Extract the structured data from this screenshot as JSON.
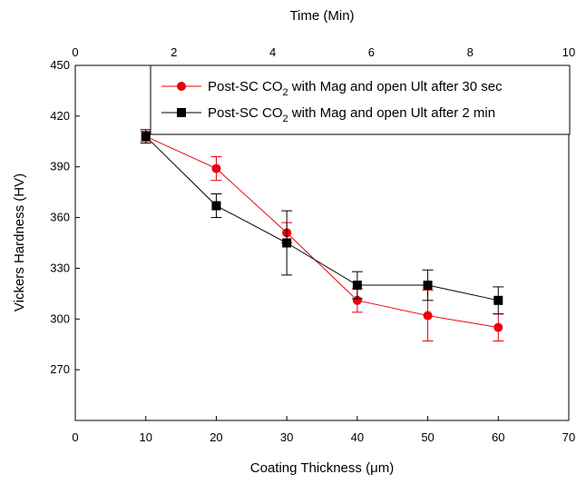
{
  "chart_data": {
    "type": "line",
    "xlabel": "Coating Thickness (μm)",
    "ylabel": "Vickers Hardness (HV)",
    "x2label": "Time (Min)",
    "xlim": [
      0,
      70
    ],
    "ylim": [
      240,
      450
    ],
    "x2lim": [
      0,
      10
    ],
    "xticks": [
      0,
      10,
      20,
      30,
      40,
      50,
      60,
      70
    ],
    "yticks": [
      270,
      300,
      330,
      360,
      390,
      420,
      450
    ],
    "x2ticks": [
      0,
      2,
      4,
      6,
      8,
      10
    ],
    "grid": false,
    "legend_position": "top-right",
    "series": [
      {
        "name": "Post-SC CO2 with Mag and open Ult after 30 sec",
        "name_main": "Post-SC CO",
        "name_sub": "2",
        "name_rest": " with Mag and open Ult after 30 sec",
        "color": "#e8000b",
        "marker": "circle",
        "x": [
          10,
          20,
          30,
          40,
          50,
          60
        ],
        "y": [
          408,
          389,
          351,
          311,
          302,
          295
        ],
        "err": [
          3,
          7,
          6,
          7,
          15,
          8
        ]
      },
      {
        "name": "Post-SC CO2 with Mag and open Ult after 2 min",
        "name_main": "Post-SC CO",
        "name_sub": "2",
        "name_rest": " with Mag and open Ult after 2 min",
        "color": "#000000",
        "marker": "square",
        "x": [
          10,
          20,
          30,
          40,
          50,
          60
        ],
        "y": [
          408,
          367,
          345,
          320,
          320,
          311
        ],
        "err": [
          4,
          7,
          19,
          8,
          9,
          8
        ]
      }
    ]
  }
}
